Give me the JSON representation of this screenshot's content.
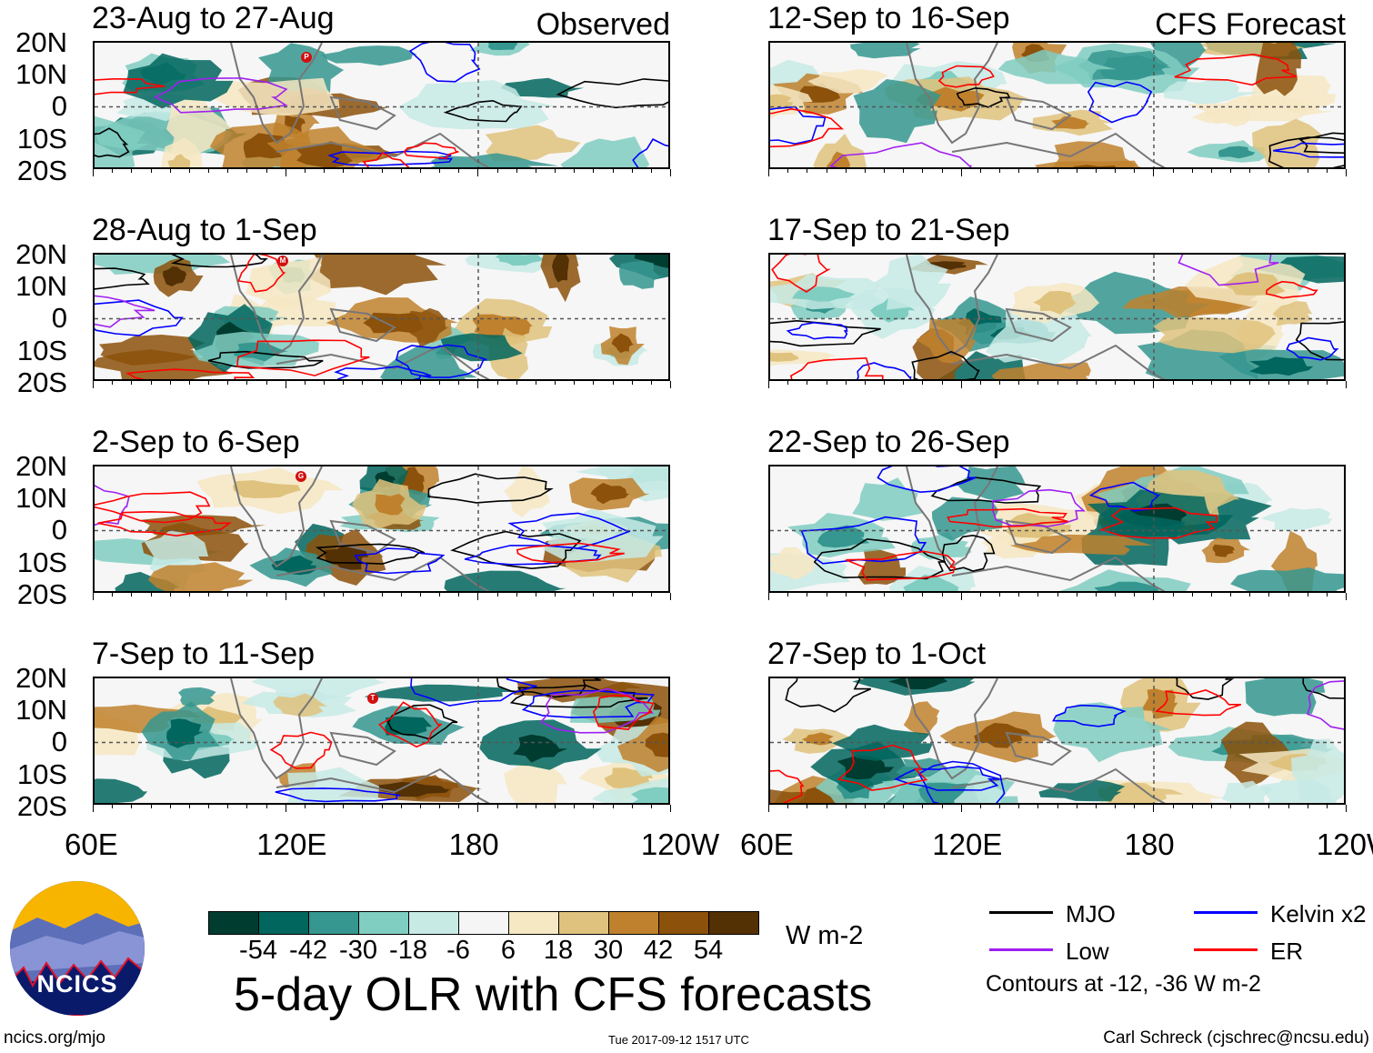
{
  "title": "5-day OLR with CFS forecasts",
  "columns": {
    "left_label": "Observed",
    "right_label": "CFS Forecast"
  },
  "panels": [
    {
      "title": "23-Aug to 27-Aug",
      "column": "observed",
      "storm": "P"
    },
    {
      "title": "28-Aug to 1-Sep",
      "column": "observed",
      "storm": "M"
    },
    {
      "title": "2-Sep to 6-Sep",
      "column": "observed",
      "storm": "G"
    },
    {
      "title": "7-Sep to 11-Sep",
      "column": "observed",
      "storm": "T"
    },
    {
      "title": "12-Sep to 16-Sep",
      "column": "forecast"
    },
    {
      "title": "17-Sep to 21-Sep",
      "column": "forecast"
    },
    {
      "title": "22-Sep to 26-Sep",
      "column": "forecast"
    },
    {
      "title": "27-Sep to 1-Oct",
      "column": "forecast"
    }
  ],
  "lat_labels": [
    "20N",
    "10N",
    "0",
    "10S",
    "20S"
  ],
  "lon_labels": [
    "60E",
    "120E",
    "180",
    "120W"
  ],
  "colorbar": {
    "colors": [
      "#003c30",
      "#01665e",
      "#35978f",
      "#80cdc1",
      "#c7eae5",
      "#f5f5f5",
      "#f6e8c3",
      "#dfc27d",
      "#bf812d",
      "#8c510a",
      "#543005"
    ],
    "labels": [
      "-54",
      "-42",
      "-30",
      "-18",
      "-6",
      "6",
      "18",
      "30",
      "42",
      "54"
    ],
    "units": "W m-2"
  },
  "legend": {
    "items": [
      {
        "label": "MJO",
        "color": "#000000"
      },
      {
        "label": "Kelvin x2",
        "color": "#0000ff"
      },
      {
        "label": "Low",
        "color": "#a020f0"
      },
      {
        "label": "ER",
        "color": "#ff0000"
      }
    ],
    "note": "Contours at -12, -36 W m-2"
  },
  "logo": {
    "text": "NCICS"
  },
  "footer": {
    "url": "ncics.org/mjo",
    "timestamp": "Tue 2017-09-12 1517 UTC",
    "credit": "Carl Schreck (cjschrec@ncsu.edu)"
  }
}
